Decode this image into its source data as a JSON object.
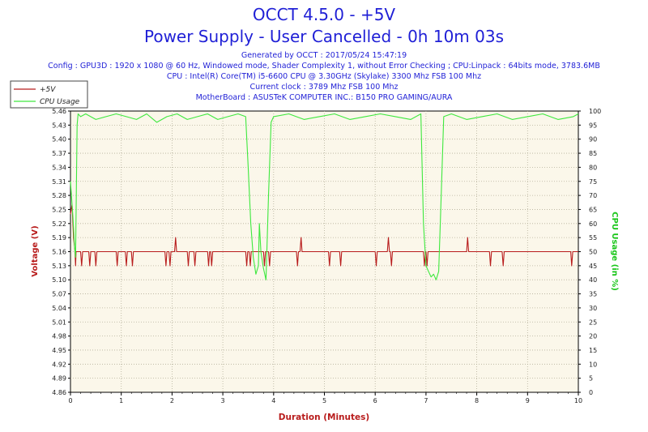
{
  "chart_data": {
    "type": "line",
    "title": "OCCT 4.5.0 - +5V",
    "subtitle": "Power Supply - User Cancelled - 0h 10m 03s",
    "info_lines": [
      "Generated by OCCT : 2017/05/24 15:47:19",
      "Config : GPU3D : 1920 x 1080 @ 60 Hz, Windowed mode, Shader Complexity 1, without Error Checking ; CPU:Linpack : 64bits mode, 3783.6MB",
      "CPU : Intel(R) Core(TM) i5-6600 CPU @ 3.30GHz (Skylake) 3300 Mhz FSB 100 Mhz",
      "Current clock : 3789 Mhz FSB 100 Mhz",
      "MotherBoard : ASUSTeK COMPUTER INC.: B150 PRO GAMING/AURA"
    ],
    "xlabel": "Duration (Minutes)",
    "ylabel": "Voltage (V)",
    "y2label": "CPU Usage (in %)",
    "xlim": [
      0,
      10
    ],
    "ylim": [
      4.86,
      5.46
    ],
    "y2lim": [
      0,
      100
    ],
    "x_ticks": [
      "0",
      "1",
      "2",
      "3",
      "4",
      "5",
      "6",
      "7",
      "8",
      "9",
      "10"
    ],
    "y_ticks": [
      "4.86",
      "4.89",
      "4.92",
      "4.95",
      "4.98",
      "5.01",
      "5.04",
      "5.07",
      "5.10",
      "5.13",
      "5.16",
      "5.19",
      "5.22",
      "5.25",
      "5.28",
      "5.31",
      "5.34",
      "5.37",
      "5.40",
      "5.43",
      "5.46"
    ],
    "y2_ticks": [
      "0",
      "5",
      "10",
      "15",
      "20",
      "25",
      "30",
      "35",
      "40",
      "45",
      "50",
      "55",
      "60",
      "65",
      "70",
      "75",
      "80",
      "85",
      "90",
      "95",
      "100"
    ],
    "grid": true,
    "legend_position": "top-left",
    "colors": {
      "voltage": "#b81c1c",
      "cpu": "#3ee83e",
      "plot_bg": "#fbf7ea",
      "title": "#1f1fd6"
    },
    "series": [
      {
        "name": "+5V",
        "axis": "left",
        "x": [
          0.0,
          0.03,
          0.06,
          0.09,
          0.1,
          0.11,
          0.12,
          0.2,
          0.22,
          0.24,
          0.36,
          0.38,
          0.4,
          0.48,
          0.5,
          0.52,
          0.9,
          0.92,
          0.94,
          1.08,
          1.1,
          1.12,
          1.2,
          1.22,
          1.24,
          1.86,
          1.88,
          1.9,
          1.94,
          1.96,
          1.98,
          2.05,
          2.07,
          2.09,
          2.3,
          2.32,
          2.34,
          2.43,
          2.45,
          2.47,
          2.7,
          2.72,
          2.74,
          2.76,
          2.78,
          2.8,
          3.45,
          3.47,
          3.49,
          3.52,
          3.54,
          3.56,
          3.8,
          3.82,
          3.84,
          3.9,
          3.92,
          3.94,
          4.45,
          4.47,
          4.49,
          4.52,
          4.54,
          4.56,
          5.08,
          5.1,
          5.12,
          5.3,
          5.32,
          5.34,
          6.0,
          6.02,
          6.04,
          6.24,
          6.26,
          6.28,
          6.3,
          6.32,
          6.34,
          6.95,
          6.97,
          6.99,
          7.0,
          7.02,
          7.04,
          7.8,
          7.82,
          7.84,
          8.25,
          8.27,
          8.29,
          8.5,
          8.52,
          8.54,
          9.85,
          9.87,
          9.89,
          10.0
        ],
        "values": [
          5.24,
          5.26,
          5.19,
          5.16,
          5.13,
          5.16,
          5.16,
          5.16,
          5.13,
          5.16,
          5.16,
          5.13,
          5.16,
          5.16,
          5.13,
          5.16,
          5.16,
          5.13,
          5.16,
          5.16,
          5.13,
          5.16,
          5.16,
          5.13,
          5.16,
          5.16,
          5.13,
          5.16,
          5.16,
          5.13,
          5.16,
          5.16,
          5.19,
          5.16,
          5.16,
          5.13,
          5.16,
          5.16,
          5.13,
          5.16,
          5.16,
          5.13,
          5.16,
          5.16,
          5.13,
          5.16,
          5.16,
          5.13,
          5.16,
          5.16,
          5.13,
          5.16,
          5.16,
          5.13,
          5.16,
          5.16,
          5.13,
          5.16,
          5.16,
          5.13,
          5.16,
          5.16,
          5.19,
          5.16,
          5.16,
          5.13,
          5.16,
          5.16,
          5.13,
          5.16,
          5.16,
          5.13,
          5.16,
          5.16,
          5.19,
          5.16,
          5.16,
          5.13,
          5.16,
          5.16,
          5.13,
          5.16,
          5.16,
          5.13,
          5.16,
          5.16,
          5.19,
          5.16,
          5.16,
          5.13,
          5.16,
          5.16,
          5.13,
          5.16,
          5.16,
          5.13,
          5.16,
          5.16
        ]
      },
      {
        "name": "CPU Usage",
        "axis": "right",
        "x": [
          0.0,
          0.05,
          0.08,
          0.1,
          0.13,
          0.15,
          0.2,
          0.3,
          0.5,
          0.7,
          0.9,
          1.1,
          1.3,
          1.5,
          1.7,
          1.9,
          2.1,
          2.3,
          2.5,
          2.7,
          2.9,
          3.1,
          3.3,
          3.45,
          3.5,
          3.55,
          3.6,
          3.65,
          3.7,
          3.72,
          3.75,
          3.8,
          3.85,
          3.9,
          3.95,
          4.0,
          4.3,
          4.6,
          4.9,
          5.2,
          5.5,
          5.8,
          6.1,
          6.4,
          6.7,
          6.9,
          6.95,
          7.0,
          7.05,
          7.1,
          7.15,
          7.2,
          7.25,
          7.3,
          7.35,
          7.5,
          7.8,
          8.1,
          8.4,
          8.7,
          9.0,
          9.3,
          9.6,
          9.9,
          10.0
        ],
        "values": [
          75,
          62,
          52,
          48,
          95,
          99,
          98,
          99,
          97,
          98,
          99,
          98,
          97,
          99,
          96,
          98,
          99,
          97,
          98,
          99,
          97,
          98,
          99,
          98,
          80,
          60,
          48,
          42,
          45,
          60,
          50,
          44,
          40,
          70,
          96,
          98,
          99,
          97,
          98,
          99,
          97,
          98,
          99,
          98,
          97,
          99,
          60,
          45,
          43,
          41,
          42,
          40,
          43,
          70,
          98,
          99,
          97,
          98,
          99,
          97,
          98,
          99,
          97,
          98,
          99
        ]
      }
    ]
  },
  "legend": [
    {
      "label": "+5V",
      "color": "#b81c1c"
    },
    {
      "label": "CPU Usage",
      "color": "#3ee83e"
    }
  ]
}
